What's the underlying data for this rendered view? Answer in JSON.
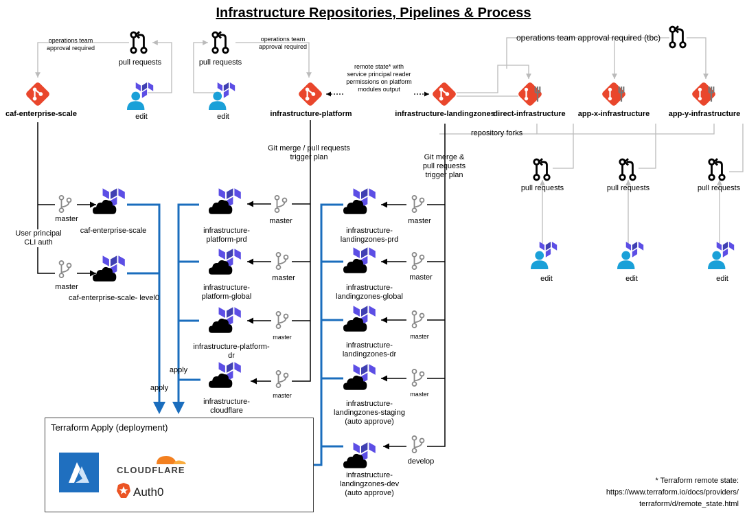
{
  "title": "Infrastructure Repositories, Pipelines & Process",
  "colors": {
    "git_red": "#e9462c",
    "terraform_purple": "#5c4ee5",
    "apply_blue": "#1a6dbd",
    "fork_gray": "#bbbbbb",
    "user_blue": "#1aa0d8"
  },
  "notes": {
    "ops_approval_1": [
      "operations team",
      "approval required"
    ],
    "ops_approval_2": [
      "operations team",
      "approval required"
    ],
    "ops_approval_tbc": "operations team approval required (tbc)",
    "remote_state": [
      "remote state* with",
      "service principal reader",
      "permissions on platform",
      "modules output"
    ],
    "repository_forks": "repository forks",
    "git_merge_platform": [
      "Git merge / pull requests",
      "trigger plan"
    ],
    "git_merge_lz": [
      "Git merge &",
      "pull requests",
      "trigger plan"
    ],
    "user_principal": [
      "User principal",
      "CLI auth"
    ],
    "footnote": [
      "* Terraform remote state:",
      "https://www.terraform.io/docs/providers/",
      "terraform/d/remote_state.html"
    ]
  },
  "repos": {
    "caf": "caf-enterprise-scale",
    "platform": "infrastructure-platform",
    "landingzones": "infrastructure-landingzones",
    "direct": "direct-infrastructure",
    "app_x": "app-x-infrastructure",
    "app_y": "app-y-infrastructure"
  },
  "labels": {
    "pull_requests": "pull requests",
    "edit": "edit",
    "master": "master",
    "develop": "develop",
    "apply": "apply"
  },
  "workspaces": {
    "caf": [
      "caf-enterprise-scale",
      "caf-enterprise-scale-\nlevel0"
    ],
    "platform_prd": [
      "infrastructure-",
      "platform-prd"
    ],
    "platform_global": [
      "infrastructure-",
      "platform-global"
    ],
    "platform_dr": [
      "infrastructure-platform-",
      "dr"
    ],
    "platform_cloudflare": [
      "infrastructure-",
      "cloudflare"
    ],
    "lz_prd": [
      "infrastructure-",
      "landingzones-prd"
    ],
    "lz_global": [
      "infrastructure-",
      "landingzones-global"
    ],
    "lz_dr": [
      "infrastructure-",
      "landingzones-dr"
    ],
    "lz_staging": [
      "infrastructure-",
      "landingzones-staging",
      "(auto approve)"
    ],
    "lz_dev": [
      "infrastructure-",
      "landingzones-dev",
      "(auto approve)"
    ]
  },
  "deploy": {
    "header": "Terraform Apply (deployment)",
    "cloudflare": "CLOUDFLARE",
    "auth0": "Auth0"
  }
}
